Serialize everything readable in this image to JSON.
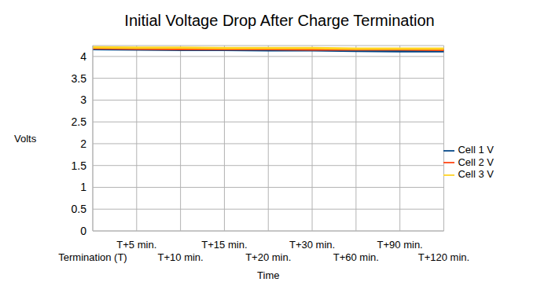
{
  "chart_data": {
    "type": "line",
    "title": "Initial Voltage Drop After Charge Termination",
    "x_label": "Time",
    "y_label": "Volts",
    "categories": [
      "Termination (T)",
      "T+5 min.",
      "T+10 min.",
      "T+15 min.",
      "T+20 min.",
      "T+30 min.",
      "T+60 min.",
      "T+90 min.",
      "T+120 min."
    ],
    "series": [
      {
        "name": "Cell 1 V",
        "color": "#004586",
        "values": [
          4.17,
          4.16,
          4.15,
          4.15,
          4.14,
          4.14,
          4.13,
          4.12,
          4.12
        ]
      },
      {
        "name": "Cell 2 V",
        "color": "#ff420e",
        "values": [
          4.19,
          4.18,
          4.17,
          4.17,
          4.17,
          4.16,
          4.16,
          4.16,
          4.15
        ]
      },
      {
        "name": "Cell 3 V",
        "color": "#ffd320",
        "values": [
          4.21,
          4.2,
          4.2,
          4.19,
          4.19,
          4.19,
          4.18,
          4.18,
          4.18
        ]
      }
    ],
    "ylim": [
      0,
      4.25
    ],
    "yticks": [
      0,
      0.5,
      1,
      1.5,
      2,
      2.5,
      3,
      3.5,
      4
    ],
    "grid": true,
    "legend": "right"
  }
}
